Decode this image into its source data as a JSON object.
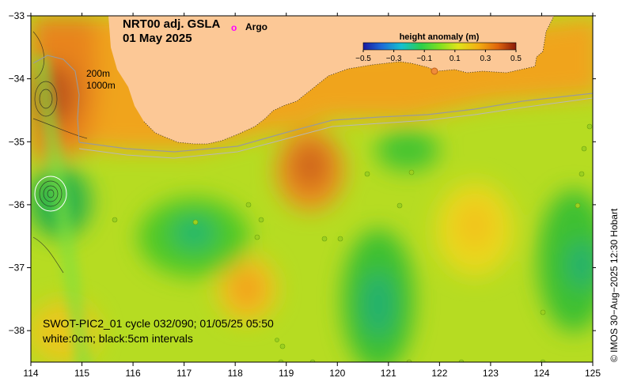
{
  "title": {
    "product": "NRT00 adj. GSLA",
    "date": "01 May 2025"
  },
  "legend": {
    "argo_symbol": "o",
    "argo_label": "Argo",
    "colorbar_title": "height anomaly (m)",
    "colorbar_ticks": [
      "−0.5",
      "−0.3",
      "−0.1",
      "0.1",
      "0.3",
      "0.5"
    ],
    "colorbar_range": [
      -0.5,
      0.5
    ]
  },
  "contours": {
    "isobath_shallow": "200m",
    "isobath_deep": "1000m"
  },
  "swot": {
    "pass_info": "SWOT-PIC2_01 cycle 032/090; 01/05/25 05:50",
    "interval_info": "white:0cm; black:5cm intervals"
  },
  "axes": {
    "lon_ticks": [
      "114",
      "115",
      "116",
      "117",
      "118",
      "119",
      "120",
      "121",
      "122",
      "123",
      "124",
      "125"
    ],
    "lat_ticks": [
      "−33",
      "−34",
      "−35",
      "−36",
      "−37",
      "−38"
    ],
    "lon_range": [
      114,
      125
    ],
    "lat_range": [
      -38.5,
      -33
    ]
  },
  "credit": "© IMOS 30−Aug−2025 12:30 Hobart",
  "colors": {
    "land": "#fcc896",
    "argo": "#ff00ff",
    "isobath": "#9a9a9a"
  }
}
